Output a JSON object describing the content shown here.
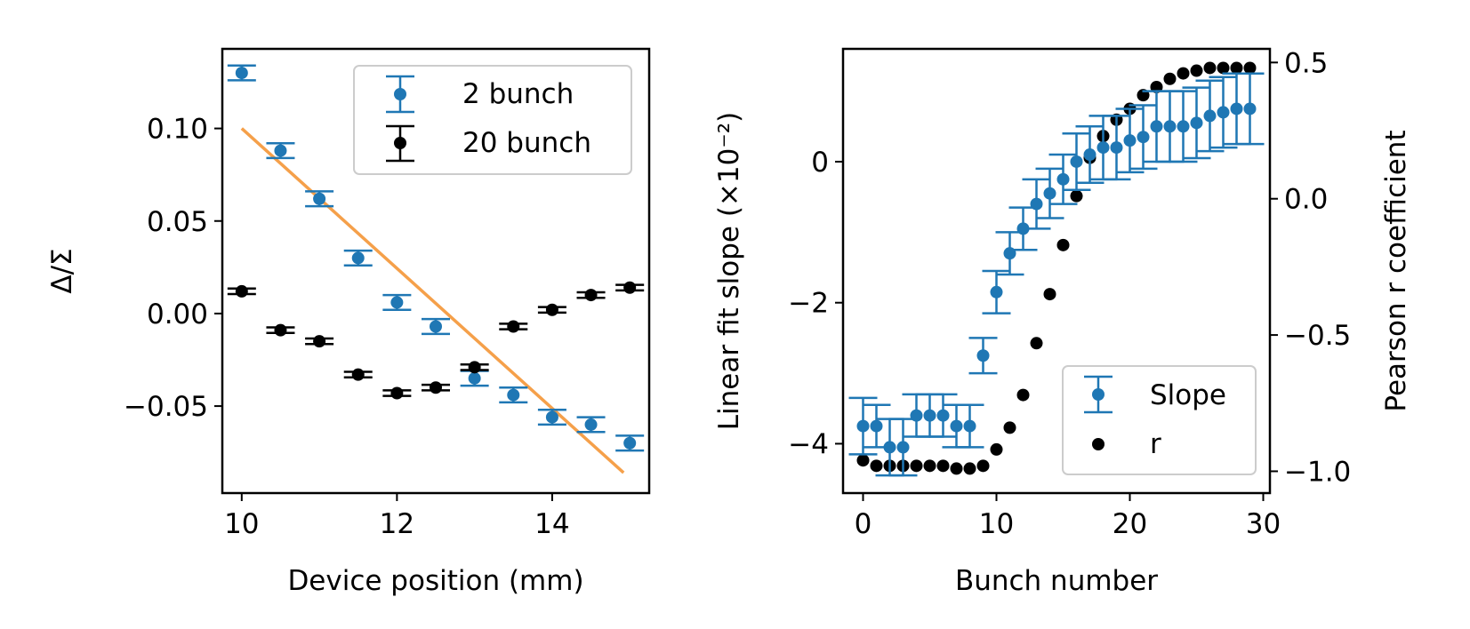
{
  "colors": {
    "blue": "#1f77b4",
    "black": "#000000",
    "orange": "#f5a04a"
  },
  "chart_data": [
    {
      "type": "scatter",
      "xlabel": "Device position (mm)",
      "ylabel": "Δ/Σ",
      "xlim": [
        9.75,
        15.25
      ],
      "ylim": [
        -0.097,
        0.143
      ],
      "x_ticks": [
        {
          "value": 10,
          "label": "10"
        },
        {
          "value": 12,
          "label": "12"
        },
        {
          "value": 14,
          "label": "14"
        }
      ],
      "y_ticks": [
        {
          "value": 0.1,
          "label": "0.10"
        },
        {
          "value": 0.05,
          "label": "0.05"
        },
        {
          "value": 0.0,
          "label": "0.00"
        },
        {
          "value": -0.05,
          "label": "−0.05"
        }
      ],
      "legend_position": "top-right",
      "series": [
        {
          "name": "2 bunch",
          "color": "#1f77b4",
          "x": [
            10,
            10.5,
            11,
            11.5,
            12,
            12.5,
            13,
            13.5,
            14,
            14.5,
            15
          ],
          "y": [
            0.13,
            0.088,
            0.062,
            0.03,
            0.006,
            -0.007,
            -0.035,
            -0.044,
            -0.056,
            -0.06,
            -0.07
          ],
          "yerr": [
            0.004,
            0.004,
            0.004,
            0.004,
            0.004,
            0.004,
            0.004,
            0.004,
            0.004,
            0.004,
            0.004
          ]
        },
        {
          "name": "20 bunch",
          "color": "#000000",
          "x": [
            10,
            10.5,
            11,
            11.5,
            12,
            12.5,
            13,
            13.5,
            14,
            14.5,
            15
          ],
          "y": [
            0.012,
            -0.009,
            -0.015,
            -0.033,
            -0.043,
            -0.04,
            -0.029,
            -0.007,
            0.002,
            0.01,
            0.014
          ],
          "yerr": [
            0.0015,
            0.0015,
            0.0015,
            0.0015,
            0.0015,
            0.0015,
            0.0015,
            0.0015,
            0.0015,
            0.0015,
            0.0015
          ]
        }
      ],
      "fit_line": {
        "color": "#f5a04a",
        "x": [
          10,
          14.92
        ],
        "y": [
          0.1,
          -0.086
        ]
      }
    },
    {
      "type": "scatter",
      "xlabel": "Bunch number",
      "ylabel": "Linear fit slope (×10⁻²)",
      "ylabel_right": "Pearson r coefficient",
      "xlim": [
        -1.5,
        30.5
      ],
      "ylim": [
        -4.7,
        1.6
      ],
      "ylim_right": [
        -1.08,
        0.55
      ],
      "x_ticks": [
        {
          "value": 0,
          "label": "0"
        },
        {
          "value": 10,
          "label": "10"
        },
        {
          "value": 20,
          "label": "20"
        },
        {
          "value": 30,
          "label": "30"
        }
      ],
      "y_ticks": [
        {
          "value": 0,
          "label": "0"
        },
        {
          "value": -2,
          "label": "−2"
        },
        {
          "value": -4,
          "label": "−4"
        }
      ],
      "y_ticks_right": [
        {
          "value": 0.5,
          "label": "0.5"
        },
        {
          "value": 0.0,
          "label": "0.0"
        },
        {
          "value": -0.5,
          "label": "−0.5"
        },
        {
          "value": -1.0,
          "label": "−1.0"
        }
      ],
      "legend_position": "bottom-right",
      "series": [
        {
          "name": "Slope",
          "color": "#1f77b4",
          "axis": "left",
          "x": [
            0,
            1,
            2,
            3,
            4,
            5,
            6,
            7,
            8,
            9,
            10,
            11,
            12,
            13,
            14,
            15,
            16,
            17,
            18,
            19,
            20,
            21,
            22,
            23,
            24,
            25,
            26,
            27,
            28,
            29
          ],
          "y": [
            -3.75,
            -3.75,
            -4.05,
            -4.05,
            -3.6,
            -3.6,
            -3.6,
            -3.75,
            -3.75,
            -2.75,
            -1.85,
            -1.3,
            -0.95,
            -0.6,
            -0.45,
            -0.25,
            0.0,
            0.1,
            0.2,
            0.2,
            0.3,
            0.35,
            0.5,
            0.5,
            0.5,
            0.55,
            0.65,
            0.7,
            0.75,
            0.75
          ],
          "yerr": [
            0.4,
            0.3,
            0.4,
            0.4,
            0.3,
            0.3,
            0.3,
            0.3,
            0.3,
            0.25,
            0.3,
            0.3,
            0.3,
            0.35,
            0.35,
            0.35,
            0.4,
            0.4,
            0.45,
            0.45,
            0.45,
            0.45,
            0.5,
            0.5,
            0.5,
            0.5,
            0.5,
            0.5,
            0.5,
            0.5
          ]
        },
        {
          "name": "r",
          "color": "#000000",
          "axis": "right",
          "x": [
            0,
            1,
            2,
            3,
            4,
            5,
            6,
            7,
            8,
            9,
            10,
            11,
            12,
            13,
            14,
            15,
            16,
            17,
            18,
            19,
            20,
            21,
            22,
            23,
            24,
            25,
            26,
            27,
            28,
            29
          ],
          "y": [
            -0.96,
            -0.98,
            -0.98,
            -0.98,
            -0.98,
            -0.98,
            -0.98,
            -0.99,
            -0.99,
            -0.98,
            -0.92,
            -0.84,
            -0.72,
            -0.53,
            -0.35,
            -0.17,
            0.01,
            0.15,
            0.23,
            0.29,
            0.33,
            0.38,
            0.41,
            0.44,
            0.46,
            0.47,
            0.48,
            0.48,
            0.48,
            0.48
          ]
        }
      ]
    }
  ]
}
